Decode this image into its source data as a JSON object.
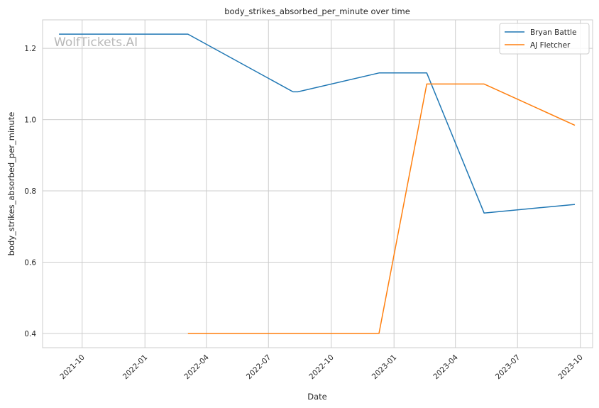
{
  "chart_data": {
    "type": "line",
    "title": "body_strikes_absorbed_per_minute over time",
    "xlabel": "Date",
    "ylabel": "body_strikes_absorbed_per_minute",
    "watermark": "WolfTickets.AI",
    "x_ticks": [
      "2021-10",
      "2022-01",
      "2022-04",
      "2022-07",
      "2022-10",
      "2023-01",
      "2023-04",
      "2023-07",
      "2023-10"
    ],
    "y_ticks": [
      "0.4",
      "0.6",
      "0.8",
      "1.0",
      "1.2"
    ],
    "xlim": [
      "2021-08-04",
      "2023-10-19"
    ],
    "ylim": [
      0.36,
      1.28
    ],
    "grid": true,
    "legend_position": "top-right",
    "series": [
      {
        "name": "Bryan Battle",
        "color": "#1f77b4",
        "points": [
          {
            "x": "2021-08-28",
            "y": 1.24
          },
          {
            "x": "2022-03-05",
            "y": 1.24
          },
          {
            "x": "2022-08-06",
            "y": 1.078
          },
          {
            "x": "2022-08-13",
            "y": 1.078
          },
          {
            "x": "2022-12-10",
            "y": 1.131
          },
          {
            "x": "2023-02-18",
            "y": 1.131
          },
          {
            "x": "2023-05-13",
            "y": 0.738
          },
          {
            "x": "2023-09-23",
            "y": 0.762
          }
        ]
      },
      {
        "name": "AJ Fletcher",
        "color": "#ff7f0e",
        "points": [
          {
            "x": "2022-03-05",
            "y": 0.4
          },
          {
            "x": "2022-12-10",
            "y": 0.4
          },
          {
            "x": "2023-02-18",
            "y": 1.1
          },
          {
            "x": "2023-05-13",
            "y": 1.1
          },
          {
            "x": "2023-09-23",
            "y": 0.984
          }
        ]
      }
    ]
  }
}
